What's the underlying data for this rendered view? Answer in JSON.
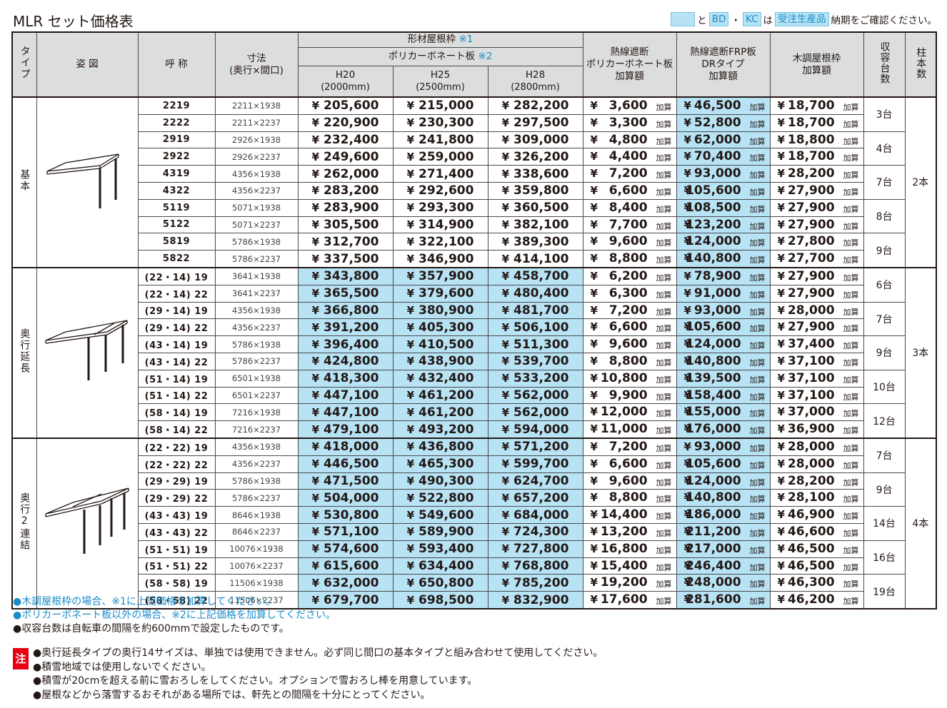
{
  "title": "MLR セット価格表",
  "legend": {
    "and": "と",
    "bd": "BD",
    "dot": "・",
    "kc": "KC",
    "wa": "は",
    "made_to_order": "受注生産品",
    "suffix": "納期をご確認ください。",
    "color": "#b7e3f5"
  },
  "header": {
    "type": "タイプ",
    "figure": "姿 図",
    "name": "呼 称",
    "dim_line1": "寸法",
    "dim_line2": "(奥行×間口)",
    "frame": "形材屋根枠",
    "frame_note": "※1",
    "polycarbonate": "ポリカーボネート板",
    "poly_note": "※2",
    "h20": "H20",
    "h20_sub": "(2000mm)",
    "h25": "H25",
    "h25_sub": "(2500mm)",
    "h28": "H28",
    "h28_sub": "(2800mm)",
    "heat_line1": "熱線遮断",
    "heat_line2": "ポリカーボネート板",
    "heat_line3": "加算額",
    "frp_line1": "熱線遮断FRP板",
    "frp_line2": "DRタイプ",
    "frp_line3": "加算額",
    "wood_line1": "木調屋根枠",
    "wood_line2": "加算額",
    "capacity": "収容台数",
    "posts": "柱本数"
  },
  "yen": "¥",
  "kasan": "加算",
  "groups": [
    {
      "type": "基本",
      "posts": "2本",
      "rows": [
        {
          "code": "2219",
          "dim": "2211×1938",
          "h20": "205,600",
          "h25": "215,000",
          "h28": "282,200",
          "heat": "3,600",
          "frp": "46,500",
          "wood": "18,700"
        },
        {
          "code": "2222",
          "dim": "2211×2237",
          "h20": "220,900",
          "h25": "230,300",
          "h28": "297,500",
          "heat": "3,300",
          "frp": "52,800",
          "wood": "18,700"
        },
        {
          "code": "2919",
          "dim": "2926×1938",
          "h20": "232,400",
          "h25": "241,800",
          "h28": "309,000",
          "heat": "4,800",
          "frp": "62,000",
          "wood": "18,800"
        },
        {
          "code": "2922",
          "dim": "2926×2237",
          "h20": "249,600",
          "h25": "259,000",
          "h28": "326,200",
          "heat": "4,400",
          "frp": "70,400",
          "wood": "18,700"
        },
        {
          "code": "4319",
          "dim": "4356×1938",
          "h20": "262,000",
          "h25": "271,400",
          "h28": "338,600",
          "heat": "7,200",
          "frp": "93,000",
          "wood": "28,200"
        },
        {
          "code": "4322",
          "dim": "4356×2237",
          "h20": "283,200",
          "h25": "292,600",
          "h28": "359,800",
          "heat": "6,600",
          "frp": "105,600",
          "wood": "27,900"
        },
        {
          "code": "5119",
          "dim": "5071×1938",
          "h20": "283,900",
          "h25": "293,300",
          "h28": "360,500",
          "heat": "8,400",
          "frp": "108,500",
          "wood": "27,900"
        },
        {
          "code": "5122",
          "dim": "5071×2237",
          "h20": "305,500",
          "h25": "314,900",
          "h28": "382,100",
          "heat": "7,700",
          "frp": "123,200",
          "wood": "27,900"
        },
        {
          "code": "5819",
          "dim": "5786×1938",
          "h20": "312,700",
          "h25": "322,100",
          "h28": "389,300",
          "heat": "9,600",
          "frp": "124,000",
          "wood": "27,800"
        },
        {
          "code": "5822",
          "dim": "5786×2237",
          "h20": "337,500",
          "h25": "346,900",
          "h28": "414,100",
          "heat": "8,800",
          "frp": "140,800",
          "wood": "27,700"
        }
      ],
      "capacities": [
        "3台",
        "4台",
        "7台",
        "8台",
        "9台"
      ]
    },
    {
      "type": "奥行延長",
      "posts": "3本",
      "rows": [
        {
          "code": "(22・14) 19",
          "dim": "3641×1938",
          "h20": "343,800",
          "h25": "357,900",
          "h28": "458,700",
          "heat": "6,200",
          "frp": "78,900",
          "wood": "27,900"
        },
        {
          "code": "(22・14) 22",
          "dim": "3641×2237",
          "h20": "365,500",
          "h25": "379,600",
          "h28": "480,400",
          "heat": "6,300",
          "frp": "91,000",
          "wood": "27,900"
        },
        {
          "code": "(29・14) 19",
          "dim": "4356×1938",
          "h20": "366,800",
          "h25": "380,900",
          "h28": "481,700",
          "heat": "7,200",
          "frp": "93,000",
          "wood": "28,000"
        },
        {
          "code": "(29・14) 22",
          "dim": "4356×2237",
          "h20": "391,200",
          "h25": "405,300",
          "h28": "506,100",
          "heat": "6,600",
          "frp": "105,600",
          "wood": "27,900"
        },
        {
          "code": "(43・14) 19",
          "dim": "5786×1938",
          "h20": "396,400",
          "h25": "410,500",
          "h28": "511,300",
          "heat": "9,600",
          "frp": "124,000",
          "wood": "37,400"
        },
        {
          "code": "(43・14) 22",
          "dim": "5786×2237",
          "h20": "424,800",
          "h25": "438,900",
          "h28": "539,700",
          "heat": "8,800",
          "frp": "140,800",
          "wood": "37,100"
        },
        {
          "code": "(51・14) 19",
          "dim": "6501×1938",
          "h20": "418,300",
          "h25": "432,400",
          "h28": "533,200",
          "heat": "10,800",
          "frp": "139,500",
          "wood": "37,100"
        },
        {
          "code": "(51・14) 22",
          "dim": "6501×2237",
          "h20": "447,100",
          "h25": "461,200",
          "h28": "562,000",
          "heat": "9,900",
          "frp": "158,400",
          "wood": "37,100"
        },
        {
          "code": "(58・14) 19",
          "dim": "7216×1938",
          "h20": "447,100",
          "h25": "461,200",
          "h28": "562,000",
          "heat": "12,000",
          "frp": "155,000",
          "wood": "37,000"
        },
        {
          "code": "(58・14) 22",
          "dim": "7216×2237",
          "h20": "479,100",
          "h25": "493,200",
          "h28": "594,000",
          "heat": "11,000",
          "frp": "176,000",
          "wood": "36,900"
        }
      ],
      "capacities": [
        "6台",
        "7台",
        "9台",
        "10台",
        "12台"
      ]
    },
    {
      "type": "奥行2連結",
      "posts": "4本",
      "rows": [
        {
          "code": "(22・22) 19",
          "dim": "4356×1938",
          "h20": "418,000",
          "h25": "436,800",
          "h28": "571,200",
          "heat": "7,200",
          "frp": "93,000",
          "wood": "28,000"
        },
        {
          "code": "(22・22) 22",
          "dim": "4356×2237",
          "h20": "446,500",
          "h25": "465,300",
          "h28": "599,700",
          "heat": "6,600",
          "frp": "105,600",
          "wood": "28,000"
        },
        {
          "code": "(29・29) 19",
          "dim": "5786×1938",
          "h20": "471,500",
          "h25": "490,300",
          "h28": "624,700",
          "heat": "9,600",
          "frp": "124,000",
          "wood": "28,200"
        },
        {
          "code": "(29・29) 22",
          "dim": "5786×2237",
          "h20": "504,000",
          "h25": "522,800",
          "h28": "657,200",
          "heat": "8,800",
          "frp": "140,800",
          "wood": "28,100"
        },
        {
          "code": "(43・43) 19",
          "dim": "8646×1938",
          "h20": "530,800",
          "h25": "549,600",
          "h28": "684,000",
          "heat": "14,400",
          "frp": "186,000",
          "wood": "46,900"
        },
        {
          "code": "(43・43) 22",
          "dim": "8646×2237",
          "h20": "571,100",
          "h25": "589,900",
          "h28": "724,300",
          "heat": "13,200",
          "frp": "211,200",
          "wood": "46,600"
        },
        {
          "code": "(51・51) 19",
          "dim": "10076×1938",
          "h20": "574,600",
          "h25": "593,400",
          "h28": "727,800",
          "heat": "16,800",
          "frp": "217,000",
          "wood": "46,500"
        },
        {
          "code": "(51・51) 22",
          "dim": "10076×2237",
          "h20": "615,600",
          "h25": "634,400",
          "h28": "768,800",
          "heat": "15,400",
          "frp": "246,400",
          "wood": "46,500"
        },
        {
          "code": "(58・58) 19",
          "dim": "11506×1938",
          "h20": "632,000",
          "h25": "650,800",
          "h28": "785,200",
          "heat": "19,200",
          "frp": "248,000",
          "wood": "46,300"
        },
        {
          "code": "(58・58) 22",
          "dim": "11506×2237",
          "h20": "679,700",
          "h25": "698,500",
          "h28": "832,900",
          "heat": "17,600",
          "frp": "281,600",
          "wood": "46,200"
        }
      ],
      "capacities": [
        "7台",
        "9台",
        "14台",
        "16台",
        "19台"
      ]
    }
  ],
  "notes": [
    "●木調屋根枠の場合、※1に上記価格を加算してください。",
    "●ポリカーボネート板以外の場合、※2に上記価格を加算してください。",
    "●収容台数は自転車の間隔を約600mmで設定したものです。"
  ],
  "caution_label": "注",
  "cautions": [
    "●奥行延長タイプの奥行14サイズは、単独では使用できません。必ず同じ間口の基本タイプと組み合わせて使用してください。",
    "●積雪地域では使用しないでください。",
    "●積雪が20cmを超える前に雪おろしをしてください。オプションで雪おろし棒を用意しています。",
    "●屋根などから落雪するおそれがある場所では、軒先との間隔を十分にとってください。"
  ]
}
